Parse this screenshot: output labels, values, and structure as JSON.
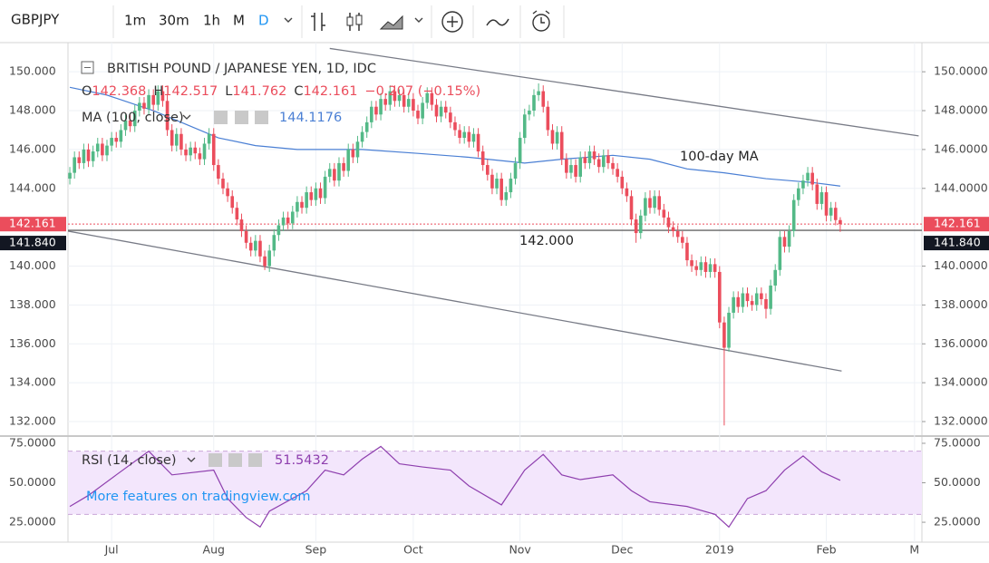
{
  "toolbar": {
    "symbol": "GBPJPY",
    "intervals": [
      "1m",
      "30m",
      "1h",
      "M",
      "D"
    ]
  },
  "chart_data": {
    "type": "candlestick",
    "title": "BRITISH POUND / JAPANESE YEN, 1D, IDC",
    "ohlc_keys": [
      "O",
      "H",
      "L",
      "C"
    ],
    "change": "−0.207 (−0.15%)",
    "up_color": "#53b987",
    "down_color": "#eb4d5c",
    "ohlc": [
      [
        144.5,
        145.1,
        144.2,
        144.8
      ],
      [
        144.8,
        145.9,
        144.5,
        145.6
      ],
      [
        145.6,
        145.9,
        145.0,
        145.3
      ],
      [
        145.3,
        146.3,
        145.0,
        146.0
      ],
      [
        146.0,
        146.3,
        145.1,
        145.4
      ],
      [
        145.4,
        146.2,
        145.1,
        145.9
      ],
      [
        145.9,
        146.6,
        145.6,
        146.3
      ],
      [
        146.3,
        146.6,
        145.4,
        145.7
      ],
      [
        145.7,
        146.5,
        145.4,
        146.2
      ],
      [
        146.2,
        146.9,
        145.9,
        146.6
      ],
      [
        146.6,
        146.9,
        146.1,
        146.4
      ],
      [
        146.4,
        147.3,
        146.1,
        147.0
      ],
      [
        147.0,
        147.8,
        146.7,
        147.5
      ],
      [
        147.5,
        147.8,
        146.9,
        147.2
      ],
      [
        147.2,
        148.3,
        146.9,
        148.0
      ],
      [
        148.0,
        148.7,
        147.7,
        148.4
      ],
      [
        148.4,
        148.7,
        147.8,
        148.1
      ],
      [
        148.1,
        149.1,
        147.8,
        148.8
      ],
      [
        148.8,
        149.1,
        148.0,
        148.3
      ],
      [
        148.3,
        149.3,
        148.0,
        149.0
      ],
      [
        149.0,
        149.3,
        148.2,
        148.5
      ],
      [
        148.5,
        148.8,
        146.7,
        147.0
      ],
      [
        147.0,
        147.3,
        145.9,
        146.2
      ],
      [
        146.2,
        147.1,
        145.9,
        146.8
      ],
      [
        146.8,
        147.1,
        145.7,
        146.0
      ],
      [
        146.0,
        146.3,
        145.4,
        145.7
      ],
      [
        145.7,
        146.4,
        145.4,
        146.1
      ],
      [
        146.1,
        146.4,
        145.5,
        145.8
      ],
      [
        145.8,
        146.1,
        145.2,
        145.5
      ],
      [
        145.5,
        146.6,
        145.2,
        146.3
      ],
      [
        146.3,
        147.1,
        146.0,
        146.8
      ],
      [
        146.8,
        147.1,
        144.9,
        145.2
      ],
      [
        145.2,
        145.5,
        144.2,
        144.5
      ],
      [
        144.5,
        144.8,
        143.7,
        144.0
      ],
      [
        144.0,
        144.3,
        143.3,
        143.6
      ],
      [
        143.6,
        143.9,
        142.7,
        143.0
      ],
      [
        143.0,
        143.3,
        142.1,
        142.4
      ],
      [
        142.4,
        142.7,
        141.5,
        141.8
      ],
      [
        141.8,
        142.1,
        140.9,
        141.2
      ],
      [
        141.2,
        141.5,
        140.5,
        140.8
      ],
      [
        140.8,
        141.6,
        140.5,
        141.3
      ],
      [
        141.3,
        141.6,
        140.2,
        140.5
      ],
      [
        140.5,
        140.8,
        139.8,
        140.0
      ],
      [
        140.0,
        141.1,
        139.7,
        140.8
      ],
      [
        140.8,
        141.9,
        140.5,
        141.6
      ],
      [
        141.6,
        142.4,
        141.3,
        142.1
      ],
      [
        142.1,
        142.8,
        141.8,
        142.5
      ],
      [
        142.5,
        142.8,
        141.9,
        142.2
      ],
      [
        142.2,
        143.1,
        141.9,
        142.8
      ],
      [
        142.8,
        143.6,
        142.5,
        143.3
      ],
      [
        143.3,
        143.6,
        142.7,
        143.0
      ],
      [
        143.0,
        144.1,
        142.7,
        143.8
      ],
      [
        143.8,
        144.1,
        143.1,
        143.4
      ],
      [
        143.4,
        144.3,
        143.1,
        144.0
      ],
      [
        144.0,
        144.3,
        143.2,
        143.5
      ],
      [
        143.5,
        144.9,
        143.2,
        144.6
      ],
      [
        144.6,
        145.3,
        144.3,
        145.0
      ],
      [
        145.0,
        145.3,
        144.1,
        144.4
      ],
      [
        144.4,
        145.6,
        144.1,
        145.3
      ],
      [
        145.3,
        145.6,
        144.6,
        144.9
      ],
      [
        144.9,
        146.3,
        144.6,
        146.0
      ],
      [
        146.0,
        146.3,
        145.3,
        145.6
      ],
      [
        145.6,
        146.7,
        145.3,
        146.4
      ],
      [
        146.4,
        147.2,
        146.1,
        146.9
      ],
      [
        146.9,
        147.7,
        146.6,
        147.4
      ],
      [
        147.4,
        148.5,
        147.1,
        148.2
      ],
      [
        148.2,
        148.5,
        147.5,
        147.8
      ],
      [
        147.8,
        148.9,
        147.5,
        148.6
      ],
      [
        148.6,
        148.9,
        148.0,
        148.3
      ],
      [
        148.3,
        149.3,
        148.0,
        149.0
      ],
      [
        149.0,
        149.3,
        148.2,
        148.5
      ],
      [
        148.5,
        149.1,
        148.2,
        148.8
      ],
      [
        148.8,
        149.1,
        147.9,
        148.2
      ],
      [
        148.2,
        148.9,
        147.9,
        148.6
      ],
      [
        148.6,
        148.9,
        147.7,
        148.0
      ],
      [
        148.0,
        148.3,
        147.3,
        147.6
      ],
      [
        147.6,
        148.7,
        147.3,
        148.4
      ],
      [
        148.4,
        149.2,
        148.1,
        148.9
      ],
      [
        148.9,
        149.2,
        148.0,
        148.3
      ],
      [
        148.3,
        148.6,
        147.4,
        147.7
      ],
      [
        147.7,
        148.5,
        147.4,
        148.2
      ],
      [
        148.2,
        148.5,
        147.6,
        147.9
      ],
      [
        147.9,
        148.2,
        147.1,
        147.4
      ],
      [
        147.4,
        147.7,
        146.7,
        147.0
      ],
      [
        147.0,
        147.3,
        146.3,
        146.6
      ],
      [
        146.6,
        147.2,
        146.3,
        146.9
      ],
      [
        146.9,
        147.2,
        146.1,
        146.4
      ],
      [
        146.4,
        147.1,
        146.1,
        146.8
      ],
      [
        146.8,
        147.1,
        145.6,
        145.9
      ],
      [
        145.9,
        146.2,
        144.9,
        145.2
      ],
      [
        145.2,
        145.5,
        144.4,
        144.7
      ],
      [
        144.7,
        145.0,
        143.7,
        144.0
      ],
      [
        144.0,
        144.8,
        143.7,
        144.5
      ],
      [
        144.5,
        144.8,
        143.1,
        143.4
      ],
      [
        143.4,
        144.1,
        143.1,
        143.8
      ],
      [
        143.8,
        144.8,
        143.5,
        144.5
      ],
      [
        144.5,
        145.6,
        144.2,
        145.3
      ],
      [
        145.3,
        146.9,
        145.0,
        146.6
      ],
      [
        146.6,
        148.1,
        146.3,
        147.8
      ],
      [
        147.8,
        148.3,
        147.5,
        148.0
      ],
      [
        148.0,
        149.1,
        147.7,
        148.8
      ],
      [
        148.8,
        149.4,
        148.5,
        149.0
      ],
      [
        149.0,
        149.3,
        147.9,
        148.2
      ],
      [
        148.2,
        148.5,
        146.7,
        147.0
      ],
      [
        147.0,
        147.3,
        146.0,
        146.3
      ],
      [
        146.3,
        147.2,
        146.0,
        146.9
      ],
      [
        146.9,
        147.2,
        145.2,
        145.5
      ],
      [
        145.5,
        145.8,
        144.5,
        144.8
      ],
      [
        144.8,
        145.5,
        144.5,
        145.2
      ],
      [
        145.2,
        145.5,
        144.3,
        144.6
      ],
      [
        144.6,
        145.9,
        144.3,
        145.6
      ],
      [
        145.6,
        145.9,
        145.0,
        145.3
      ],
      [
        145.3,
        146.2,
        145.0,
        145.9
      ],
      [
        145.9,
        146.2,
        145.2,
        145.5
      ],
      [
        145.5,
        145.8,
        144.8,
        145.1
      ],
      [
        145.1,
        146.0,
        144.8,
        145.7
      ],
      [
        145.7,
        146.0,
        145.0,
        145.3
      ],
      [
        145.3,
        145.6,
        144.7,
        145.0
      ],
      [
        145.0,
        145.3,
        144.3,
        144.6
      ],
      [
        144.6,
        144.9,
        143.7,
        144.0
      ],
      [
        144.0,
        144.3,
        143.3,
        143.6
      ],
      [
        143.6,
        143.9,
        142.1,
        142.4
      ],
      [
        142.4,
        142.7,
        141.2,
        141.7
      ],
      [
        141.7,
        142.9,
        141.4,
        142.6
      ],
      [
        142.6,
        143.8,
        142.3,
        143.5
      ],
      [
        143.5,
        143.9,
        142.7,
        143.0
      ],
      [
        143.0,
        143.9,
        142.7,
        143.6
      ],
      [
        143.6,
        143.9,
        142.6,
        142.9
      ],
      [
        142.9,
        143.2,
        142.2,
        142.5
      ],
      [
        142.5,
        142.8,
        141.7,
        142.0
      ],
      [
        142.0,
        142.3,
        141.5,
        141.8
      ],
      [
        141.8,
        142.1,
        141.2,
        141.5
      ],
      [
        141.5,
        141.8,
        140.9,
        141.2
      ],
      [
        141.2,
        141.5,
        140.0,
        140.3
      ],
      [
        140.3,
        140.6,
        139.7,
        140.0
      ],
      [
        140.0,
        140.3,
        139.5,
        139.8
      ],
      [
        139.8,
        140.5,
        139.5,
        140.2
      ],
      [
        140.2,
        140.5,
        139.4,
        139.7
      ],
      [
        139.7,
        140.4,
        139.4,
        140.1
      ],
      [
        140.1,
        140.4,
        139.4,
        139.7
      ],
      [
        139.7,
        140.0,
        136.8,
        137.1
      ],
      [
        137.1,
        137.4,
        131.8,
        135.8
      ],
      [
        135.8,
        137.9,
        135.6,
        137.6
      ],
      [
        137.6,
        138.7,
        137.3,
        138.4
      ],
      [
        138.4,
        138.7,
        137.6,
        137.9
      ],
      [
        137.9,
        138.9,
        137.6,
        138.6
      ],
      [
        138.6,
        138.9,
        137.9,
        138.2
      ],
      [
        138.2,
        138.5,
        137.7,
        138.0
      ],
      [
        138.0,
        138.9,
        137.7,
        138.6
      ],
      [
        138.6,
        138.9,
        138.0,
        138.3
      ],
      [
        138.3,
        138.6,
        137.3,
        137.8
      ],
      [
        137.8,
        139.3,
        137.5,
        139.0
      ],
      [
        139.0,
        140.1,
        138.7,
        139.8
      ],
      [
        139.8,
        141.8,
        139.5,
        141.5
      ],
      [
        141.5,
        141.8,
        140.7,
        141.0
      ],
      [
        141.0,
        142.1,
        140.7,
        141.8
      ],
      [
        141.8,
        143.7,
        141.5,
        143.4
      ],
      [
        143.4,
        144.3,
        143.1,
        144.0
      ],
      [
        144.0,
        144.7,
        143.7,
        144.4
      ],
      [
        144.4,
        145.1,
        144.1,
        144.8
      ],
      [
        144.8,
        145.1,
        143.9,
        144.2
      ],
      [
        144.2,
        144.5,
        142.9,
        143.2
      ],
      [
        143.2,
        144.1,
        142.9,
        143.8
      ],
      [
        143.8,
        144.1,
        142.3,
        142.6
      ],
      [
        142.6,
        143.3,
        142.3,
        143.0
      ],
      [
        143.0,
        143.3,
        142.1,
        142.368
      ],
      [
        142.368,
        142.517,
        141.762,
        142.161
      ]
    ],
    "xlim": [
      -0.4,
      183.6
    ],
    "xticks": [
      {
        "value": 9,
        "label": "Jul"
      },
      {
        "value": 31,
        "label": "Aug"
      },
      {
        "value": 53,
        "label": "Sep"
      },
      {
        "value": 74,
        "label": "Oct"
      },
      {
        "value": 97,
        "label": "Nov"
      },
      {
        "value": 119,
        "label": "Dec"
      },
      {
        "value": 140,
        "label": "2019"
      },
      {
        "value": 163,
        "label": "Feb"
      },
      {
        "value": 182,
        "label": "M"
      }
    ],
    "ylim": [
      131.3,
      151.5
    ],
    "yticks": [
      {
        "value": 132,
        "label": "132.000"
      },
      {
        "value": 134,
        "label": "134.000"
      },
      {
        "value": 136,
        "label": "136.000"
      },
      {
        "value": 138,
        "label": "138.000"
      },
      {
        "value": 140,
        "label": "140.000"
      },
      {
        "value": 144,
        "label": "144.000"
      },
      {
        "value": 146,
        "label": "146.000"
      },
      {
        "value": 148,
        "label": "148.000"
      },
      {
        "value": 150,
        "label": "150.000"
      }
    ],
    "y2lim": [
      131.3,
      151.5
    ],
    "y2ticks": [
      {
        "value": 132,
        "label": "132.0000"
      },
      {
        "value": 134,
        "label": "134.0000"
      },
      {
        "value": 136,
        "label": "136.0000"
      },
      {
        "value": 138,
        "label": "138.0000"
      },
      {
        "value": 140,
        "label": "140.0000"
      },
      {
        "value": 144,
        "label": "144.0000"
      },
      {
        "value": 146,
        "label": "146.0000"
      },
      {
        "value": 148,
        "label": "148.0000"
      },
      {
        "value": 150,
        "label": "150.0000"
      }
    ],
    "grid": true,
    "ma": {
      "name": "MA (100, close)",
      "color": "#4a7fd4",
      "x": [
        0,
        8,
        18,
        24,
        32,
        40,
        49,
        63,
        75,
        86,
        98,
        106,
        117,
        125,
        133,
        141,
        150,
        160,
        166
      ],
      "values": [
        149.2,
        148.8,
        148.0,
        147.4,
        146.6,
        146.2,
        146.0,
        146.0,
        145.8,
        145.6,
        145.3,
        145.5,
        145.7,
        145.5,
        145.0,
        144.8,
        144.5,
        144.3,
        144.1176
      ]
    },
    "trendlines": [
      {
        "x": [
          56,
          182.9
        ],
        "values": [
          151.2,
          146.7
        ]
      },
      {
        "x": [
          -0.4,
          166.3
        ],
        "values": [
          141.8,
          134.6
        ]
      }
    ],
    "trendline_color": "#787b86",
    "level": {
      "value": 141.84,
      "label": "141.840"
    },
    "annotations": [
      "100-day MA",
      "142.000"
    ],
    "rsi": {
      "name": "RSI (14, close)",
      "color": "#8e3fae",
      "x": [
        0,
        4,
        10,
        17,
        22,
        31,
        34,
        38,
        41,
        43,
        51,
        55,
        59,
        63,
        67,
        71,
        76,
        82,
        86,
        93,
        98,
        102,
        106,
        110,
        117,
        121,
        125,
        133,
        139,
        142,
        146,
        150,
        154,
        158,
        162,
        166
      ],
      "values": [
        35,
        42,
        55,
        70,
        55,
        58,
        40,
        28,
        22,
        32,
        45,
        58,
        55,
        65,
        73,
        62,
        60,
        58,
        48,
        36,
        58,
        68,
        55,
        52,
        55,
        45,
        38,
        35,
        30,
        22,
        40,
        45,
        58,
        67,
        57,
        51.5432
      ],
      "ylim": [
        12.4,
        79
      ],
      "yticks": [
        {
          "value": 25,
          "label": "25.0000"
        },
        {
          "value": 50,
          "label": "50.0000"
        },
        {
          "value": 75,
          "label": "75.0000"
        }
      ],
      "band": [
        30,
        70
      ]
    },
    "promo": "More features on tradingview.com"
  }
}
